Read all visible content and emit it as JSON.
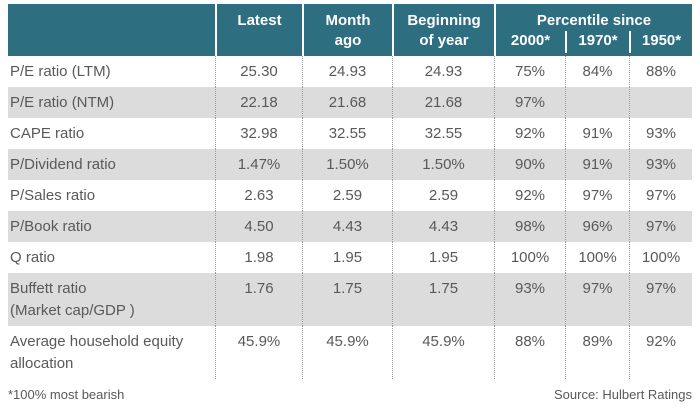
{
  "chart_data": {
    "type": "table",
    "header": {
      "latest": "Latest",
      "month_ago": "Month\nago",
      "beginning_of_year": "Beginning\nof year",
      "percentile_since": "Percentile since",
      "percentile_columns": [
        "2000*",
        "1970*",
        "1950*"
      ]
    },
    "columns": [
      "",
      "Latest",
      "Month ago",
      "Beginning of year",
      "Percentile since 2000*",
      "Percentile since 1970*",
      "Percentile since 1950*"
    ],
    "rows": [
      {
        "label": "P/E ratio (LTM)",
        "values": [
          "25.30",
          "24.93",
          "24.93",
          "75%",
          "84%",
          "88%"
        ]
      },
      {
        "label": "P/E ratio (NTM)",
        "values": [
          "22.18",
          "21.68",
          "21.68",
          "97%",
          "",
          ""
        ]
      },
      {
        "label": "CAPE ratio",
        "values": [
          "32.98",
          "32.55",
          "32.55",
          "92%",
          "91%",
          "93%"
        ]
      },
      {
        "label": "P/Dividend ratio",
        "values": [
          "1.47%",
          "1.50%",
          "1.50%",
          "90%",
          "91%",
          "93%"
        ]
      },
      {
        "label": "P/Sales ratio",
        "values": [
          "2.63",
          "2.59",
          "2.59",
          "92%",
          "97%",
          "97%"
        ]
      },
      {
        "label": "P/Book ratio",
        "values": [
          "4.50",
          "4.43",
          "4.43",
          "98%",
          "96%",
          "97%"
        ]
      },
      {
        "label": "Q ratio",
        "values": [
          "1.98",
          "1.95",
          "1.95",
          "100%",
          "100%",
          "100%"
        ]
      },
      {
        "label": "Buffett ratio (Market cap/GDP )",
        "label_lines": [
          "Buffett ratio",
          "(Market cap/GDP )"
        ],
        "values": [
          "1.76",
          "1.75",
          "1.75",
          "93%",
          "97%",
          "97%"
        ]
      },
      {
        "label": "Average household equity allocation",
        "label_lines": [
          "Average household equity",
          "allocation"
        ],
        "values": [
          "45.9%",
          "45.9%",
          "45.9%",
          "88%",
          "89%",
          "92%"
        ]
      }
    ],
    "footnote": "*100% most bearish",
    "source": "Source: Hulbert Ratings"
  },
  "colors": {
    "header-bg": "#2d6e80",
    "header-text": "#ffffff",
    "stripe": "#dcdcdc",
    "text": "#58595b"
  }
}
